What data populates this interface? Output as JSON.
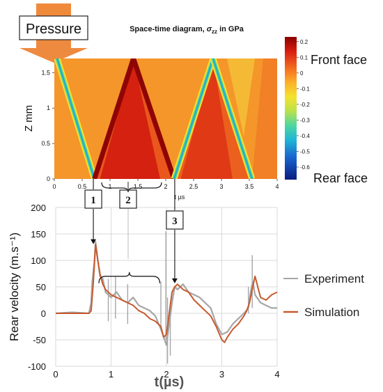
{
  "pressure_label": "Pressure",
  "chart_data": [
    {
      "type": "heatmap",
      "title_prefix": "Space-time diagram, ",
      "title_symbol": "σ",
      "title_subscript": "zz",
      "title_suffix": " in GPa",
      "xlabel": "t µs",
      "ylabel": "Z mm",
      "xlim": [
        0,
        4
      ],
      "ylim": [
        0,
        1.7
      ],
      "xticks": [
        "0",
        "0.5",
        "1",
        "1.5",
        "2",
        "2.5",
        "3",
        "3.5",
        "4"
      ],
      "yticks": [
        "0",
        "0.5",
        "1",
        "1.5"
      ],
      "colorbar": {
        "min": -0.68,
        "max": 0.23,
        "ticks": [
          "0.2",
          "0.1",
          "0",
          "-0.1",
          "-0.2",
          "-0.3",
          "-0.4",
          "-0.5",
          "-0.6"
        ]
      },
      "annotations": [
        "Front face",
        "Rear face"
      ],
      "wave_fronts": [
        {
          "kind": "tension",
          "from": [
            0.05,
            1.7
          ],
          "to": [
            0.72,
            0
          ]
        },
        {
          "kind": "compression",
          "from": [
            0.72,
            0
          ],
          "to": [
            1.42,
            1.7
          ]
        },
        {
          "kind": "compression",
          "from": [
            1.42,
            1.7
          ],
          "to": [
            2.15,
            0
          ]
        },
        {
          "kind": "tension",
          "from": [
            2.15,
            0
          ],
          "to": [
            2.85,
            1.7
          ]
        },
        {
          "kind": "tension",
          "from": [
            2.85,
            1.7
          ],
          "to": [
            3.55,
            0
          ]
        }
      ]
    },
    {
      "type": "line",
      "xlabel": "t(µs)",
      "ylabel": "Rear velocity (m.s⁻¹)",
      "xlim": [
        0,
        4
      ],
      "ylim": [
        -100,
        200
      ],
      "xticks": [
        "0",
        "1",
        "2",
        "3",
        "4"
      ],
      "yticks": [
        "200",
        "150",
        "100",
        "50",
        "0",
        "-50",
        "-100"
      ],
      "grid": true,
      "legend": "right",
      "series": [
        {
          "name": "Experiment",
          "color": "#a6a6a6",
          "x": [
            0,
            0.3,
            0.6,
            0.64,
            0.66,
            0.7,
            0.72,
            0.75,
            0.8,
            0.85,
            0.9,
            1.0,
            1.1,
            1.2,
            1.3,
            1.4,
            1.5,
            1.6,
            1.7,
            1.8,
            1.9,
            1.95,
            2.0,
            2.05,
            2.1,
            2.15,
            2.2,
            2.3,
            2.4,
            2.5,
            2.6,
            2.7,
            2.8,
            2.9,
            3.0,
            3.1,
            3.2,
            3.3,
            3.4,
            3.48,
            3.52,
            3.56,
            3.6,
            3.7,
            3.8,
            3.9,
            4.0
          ],
          "y": [
            0,
            2,
            0,
            20,
            60,
            100,
            135,
            110,
            70,
            65,
            40,
            30,
            40,
            25,
            20,
            30,
            15,
            10,
            5,
            -5,
            -30,
            -45,
            -60,
            -20,
            20,
            50,
            45,
            55,
            40,
            35,
            30,
            20,
            10,
            -20,
            -40,
            -35,
            -20,
            -10,
            0,
            10,
            40,
            60,
            35,
            20,
            15,
            10,
            10
          ]
        },
        {
          "name": "Simulation",
          "color": "#c65a2e",
          "x": [
            0,
            0.5,
            0.6,
            0.64,
            0.68,
            0.72,
            0.76,
            0.8,
            0.85,
            0.9,
            1.0,
            1.1,
            1.2,
            1.3,
            1.4,
            1.5,
            1.6,
            1.7,
            1.8,
            1.9,
            1.95,
            2.0,
            2.05,
            2.1,
            2.15,
            2.2,
            2.3,
            2.4,
            2.5,
            2.6,
            2.7,
            2.8,
            2.9,
            3.0,
            3.05,
            3.1,
            3.2,
            3.3,
            3.4,
            3.45,
            3.5,
            3.55,
            3.6,
            3.65,
            3.7,
            3.8,
            3.9,
            4.0
          ],
          "y": [
            0,
            0,
            0,
            5,
            60,
            130,
            100,
            75,
            55,
            45,
            35,
            30,
            25,
            20,
            15,
            5,
            0,
            -10,
            -15,
            -25,
            -45,
            -40,
            0,
            40,
            50,
            55,
            45,
            40,
            25,
            15,
            5,
            -5,
            -25,
            -50,
            -55,
            -45,
            -30,
            -20,
            -5,
            5,
            20,
            45,
            70,
            50,
            30,
            25,
            35,
            40
          ]
        }
      ],
      "spikes": [
        {
          "x": 0.95,
          "y1": -15,
          "y2": 65
        },
        {
          "x": 1.08,
          "y1": -10,
          "y2": 70
        },
        {
          "x": 1.3,
          "y1": -20,
          "y2": 55
        },
        {
          "x": 1.9,
          "y1": -30,
          "y2": 60
        },
        {
          "x": 1.99,
          "y1": -50,
          "y2": 155
        },
        {
          "x": 2.02,
          "y1": -95,
          "y2": 30
        },
        {
          "x": 2.07,
          "y1": -80,
          "y2": 20
        },
        {
          "x": 3.55,
          "y1": 10,
          "y2": 110
        },
        {
          "x": 3.48,
          "y1": 0,
          "y2": 50
        }
      ],
      "markers": [
        {
          "label": "1",
          "x": 0.68
        },
        {
          "label": "2",
          "x": 1.32
        },
        {
          "label": "3",
          "x": 2.15
        }
      ],
      "brace": {
        "from": 0.78,
        "to": 1.88
      }
    }
  ]
}
